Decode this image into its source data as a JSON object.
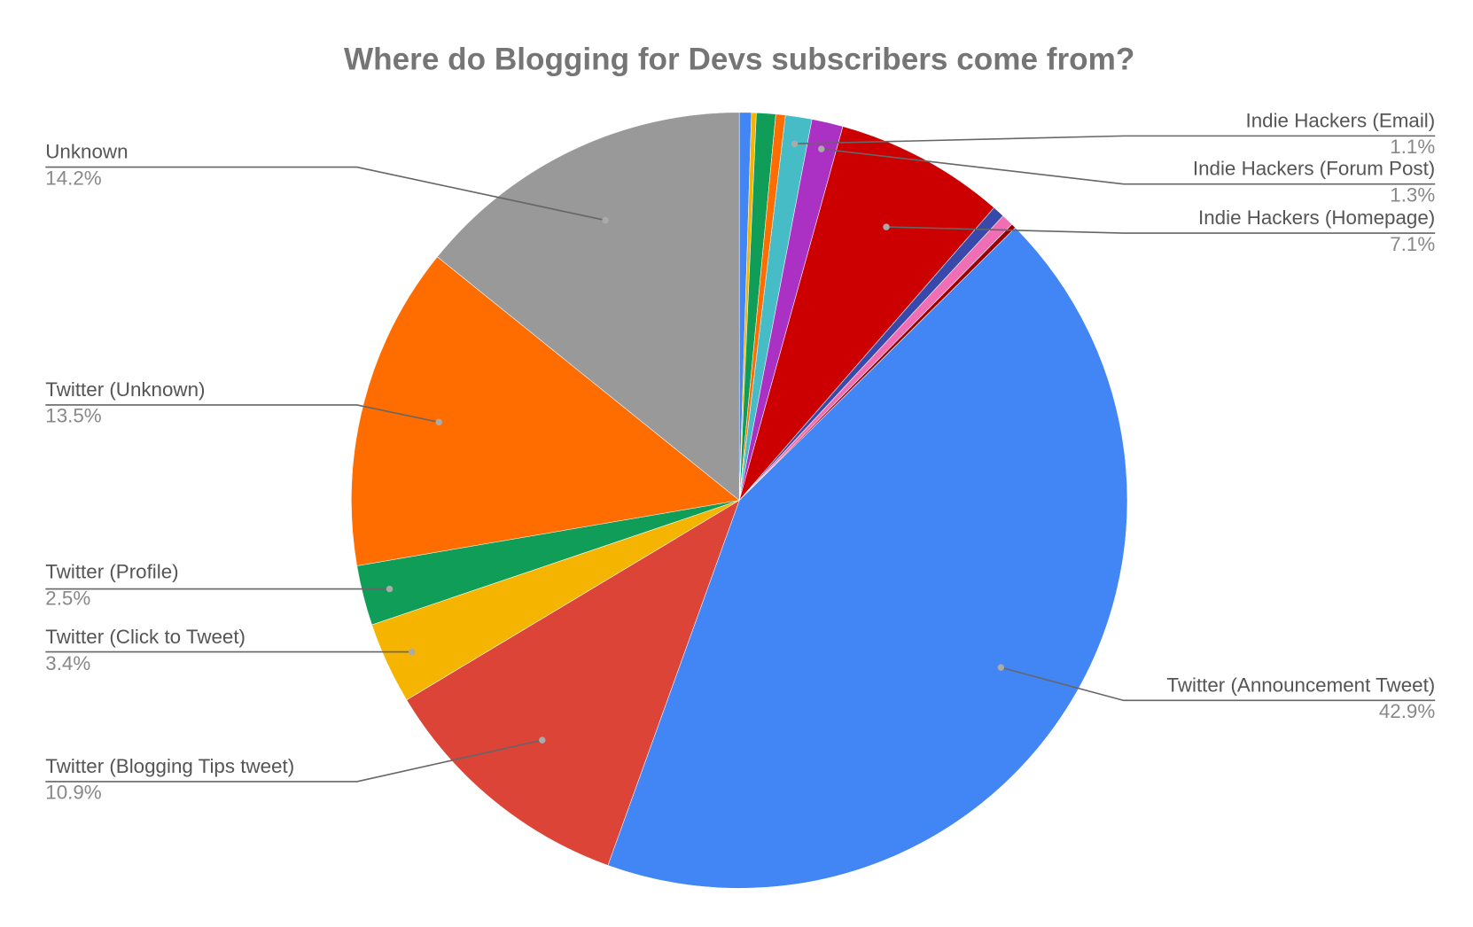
{
  "chart_data": {
    "type": "pie",
    "title": "Where do Blogging for Devs subscribers come from?",
    "categories": [
      null,
      null,
      null,
      null,
      "Indie Hackers (Email)",
      "Indie Hackers (Forum Post)",
      "Indie Hackers (Homepage)",
      null,
      null,
      null,
      "Twitter (Announcement Tweet)",
      "Twitter (Blogging Tips tweet)",
      "Twitter (Click to Tweet)",
      "Twitter (Profile)",
      "Twitter (Unknown)",
      "Unknown"
    ],
    "values": [
      0.5,
      0.2,
      0.8,
      0.4,
      1.1,
      1.3,
      7.1,
      0.5,
      0.5,
      0.2,
      42.9,
      10.9,
      3.4,
      2.5,
      13.5,
      14.2
    ],
    "value_labels": [
      null,
      null,
      null,
      null,
      "1.1%",
      "1.3%",
      "7.1%",
      null,
      null,
      null,
      "42.9%",
      "10.9%",
      "3.4%",
      "2.5%",
      "13.5%",
      "14.2%"
    ],
    "colors": [
      "#4285f4",
      "#f4b400",
      "#0f9d58",
      "#ff6d00",
      "#46bdc6",
      "#ab30c4",
      "#cc0000",
      "#3949ab",
      "#f06fb4",
      "#990000",
      "#4285f4",
      "#db4437",
      "#f4b400",
      "#0f9d58",
      "#ff6d00",
      "#999999"
    ]
  }
}
